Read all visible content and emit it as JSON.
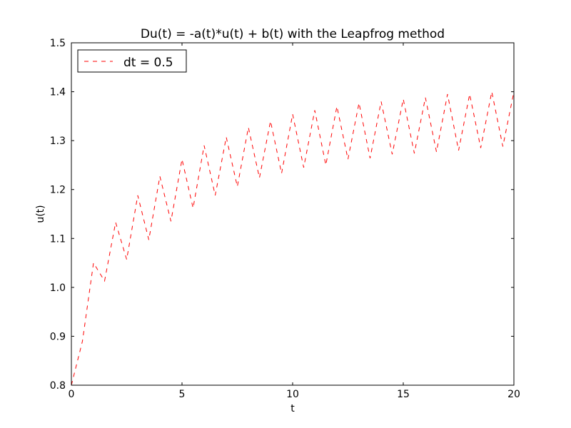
{
  "chart_data": {
    "type": "line",
    "title": "Du(t) = -a(t)*u(t) + b(t) with the Leapfrog method",
    "xlabel": "t",
    "ylabel": "u(t)",
    "xlim": [
      0,
      20
    ],
    "ylim": [
      0.8,
      1.5
    ],
    "xticks": [
      0,
      5,
      10,
      15,
      20
    ],
    "xtick_labels": [
      "0",
      "5",
      "10",
      "15",
      "20"
    ],
    "yticks": [
      0.8,
      0.9,
      1.0,
      1.1,
      1.2,
      1.3,
      1.4,
      1.5
    ],
    "ytick_labels": [
      "0.8",
      "0.9",
      "1.0",
      "1.1",
      "1.2",
      "1.3",
      "1.4",
      "1.5"
    ],
    "grid": false,
    "legend": {
      "placement": "top-left",
      "entries": [
        "dt = 0.5"
      ]
    },
    "series": [
      {
        "name": "dt = 0.5",
        "color": "#ff0000",
        "linestyle": "dashed",
        "x": [
          0,
          0.5,
          1.0,
          1.5,
          2.0,
          2.5,
          3.0,
          3.5,
          4.0,
          4.5,
          5.0,
          5.5,
          6.0,
          6.5,
          7.0,
          7.5,
          8.0,
          8.5,
          9.0,
          9.5,
          10.0,
          10.5,
          11.0,
          11.5,
          12.0,
          12.5,
          13.0,
          13.5,
          14.0,
          14.5,
          15.0,
          15.5,
          16.0,
          16.5,
          17.0,
          17.5,
          18.0,
          18.5,
          19.0,
          19.5,
          20.0
        ],
        "y": [
          0.8,
          0.89,
          1.05,
          1.013,
          1.133,
          1.057,
          1.188,
          1.097,
          1.227,
          1.135,
          1.262,
          1.162,
          1.29,
          1.188,
          1.307,
          1.206,
          1.327,
          1.224,
          1.34,
          1.233,
          1.354,
          1.245,
          1.362,
          1.25,
          1.37,
          1.262,
          1.377,
          1.264,
          1.38,
          1.272,
          1.385,
          1.274,
          1.388,
          1.277,
          1.395,
          1.28,
          1.395,
          1.285,
          1.4,
          1.288,
          1.4
        ]
      }
    ]
  }
}
